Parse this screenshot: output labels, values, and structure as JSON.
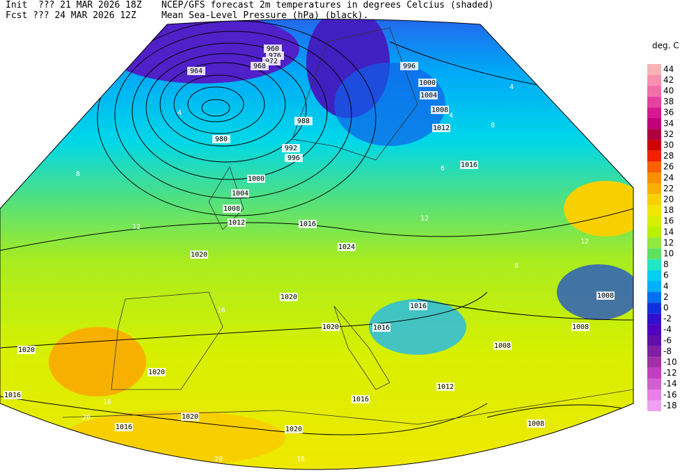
{
  "header": {
    "init": "Init  ??? 21 MAR 2026 18Z",
    "fcst": "Fcst ??? 24 MAR 2026 12Z",
    "title": "NCEP/GFS forecast 2m temperatures in degrees Celcius (shaded)",
    "subtitle": "Mean Sea-Level Pressure (hPa) (black)."
  },
  "legend": {
    "title": "deg. C",
    "items": [
      {
        "label": 44,
        "color": "#f8b4b4"
      },
      {
        "label": 42,
        "color": "#f890b0"
      },
      {
        "label": 40,
        "color": "#f070a8"
      },
      {
        "label": 38,
        "color": "#e840a0"
      },
      {
        "label": 36,
        "color": "#d81890"
      },
      {
        "label": 34,
        "color": "#c00078"
      },
      {
        "label": 32,
        "color": "#b00040"
      },
      {
        "label": 30,
        "color": "#d00000"
      },
      {
        "label": 28,
        "color": "#f02000"
      },
      {
        "label": 26,
        "color": "#f86000"
      },
      {
        "label": 24,
        "color": "#f89000"
      },
      {
        "label": 22,
        "color": "#f8b000"
      },
      {
        "label": 20,
        "color": "#f8d000"
      },
      {
        "label": 18,
        "color": "#f0e800"
      },
      {
        "label": 16,
        "color": "#d8f000"
      },
      {
        "label": 14,
        "color": "#b8f000"
      },
      {
        "label": 12,
        "color": "#90e840"
      },
      {
        "label": 10,
        "color": "#60e060"
      },
      {
        "label": 8,
        "color": "#20e8c0"
      },
      {
        "label": 6,
        "color": "#00d0f0"
      },
      {
        "label": 4,
        "color": "#00b0f8"
      },
      {
        "label": 2,
        "color": "#0070f0"
      },
      {
        "label": 0,
        "color": "#1030e0"
      },
      {
        "label": -2,
        "color": "#3010d0"
      },
      {
        "label": -4,
        "color": "#5000c0"
      },
      {
        "label": -6,
        "color": "#6010a8"
      },
      {
        "label": -8,
        "color": "#8020a0"
      },
      {
        "label": -10,
        "color": "#a030a8"
      },
      {
        "label": -12,
        "color": "#c040c0"
      },
      {
        "label": -14,
        "color": "#d060d0"
      },
      {
        "label": -16,
        "color": "#e880e8"
      },
      {
        "label": -18,
        "color": "#f0a0f0"
      }
    ]
  },
  "map": {
    "isobar_labels": [
      960,
      976,
      972,
      968,
      964,
      996,
      1000,
      1004,
      1008,
      1012,
      1016,
      980,
      988,
      992,
      996,
      1000,
      1004,
      1008,
      1012,
      1016,
      1020,
      1024,
      1020,
      1016,
      1016,
      1020,
      1020,
      1020,
      1016,
      1016,
      1020,
      1020,
      1016,
      1008,
      1008,
      1008,
      1008,
      1012
    ],
    "temperature_labels": [
      4,
      8,
      12,
      16,
      16,
      20,
      20,
      16,
      8,
      6,
      12,
      12,
      8,
      4,
      4
    ]
  }
}
